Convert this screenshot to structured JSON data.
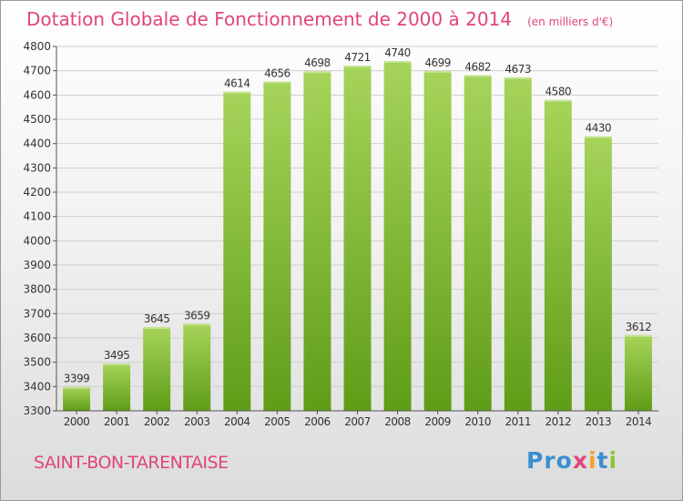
{
  "header": {
    "title": "Dotation Globale de Fonctionnement de 2000 à 2014",
    "unit": "(en milliers d'€)"
  },
  "footer": {
    "location": "SAINT-BON-TARENTAISE",
    "logo_parts": [
      "Pro",
      "x",
      "i",
      "t",
      "i"
    ]
  },
  "colors": {
    "title": "#e0457a",
    "bar_light": "#a6d45a",
    "bar_dark": "#5f9d17",
    "grid": "#cfcfcf"
  },
  "chart_data": {
    "type": "bar",
    "title": "Dotation Globale de Fonctionnement de 2000 à 2014",
    "subtitle": "(en milliers d'€)",
    "xlabel": "",
    "ylabel": "",
    "categories": [
      "2000",
      "2001",
      "2002",
      "2003",
      "2004",
      "2005",
      "2006",
      "2007",
      "2008",
      "2009",
      "2010",
      "2011",
      "2012",
      "2013",
      "2014"
    ],
    "values": [
      3399,
      3495,
      3645,
      3659,
      4614,
      4656,
      4698,
      4721,
      4740,
      4699,
      4682,
      4673,
      4580,
      4430,
      3612
    ],
    "ylim": [
      3300,
      4800
    ],
    "yticks": [
      3300,
      3400,
      3500,
      3600,
      3700,
      3800,
      3900,
      4000,
      4100,
      4200,
      4300,
      4400,
      4500,
      4600,
      4700,
      4800
    ],
    "grid": true,
    "legend": "none",
    "data_labels": true
  }
}
